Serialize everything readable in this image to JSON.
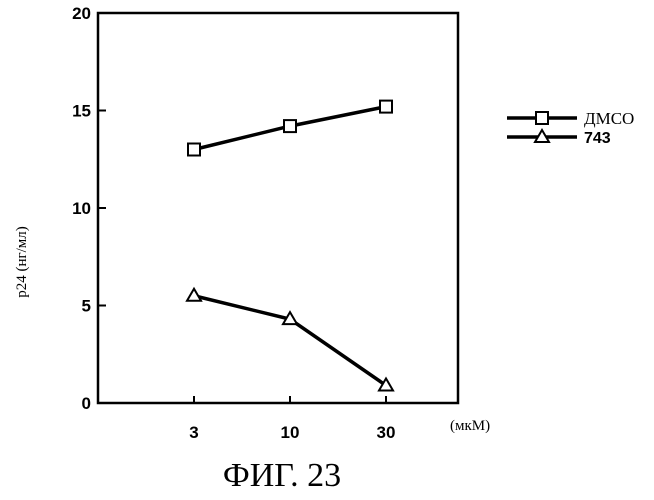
{
  "chart_data": {
    "type": "line",
    "categories": [
      "3",
      "10",
      "30"
    ],
    "series": [
      {
        "name": "ДМСО",
        "values": [
          13.0,
          14.2,
          15.2
        ],
        "marker": "square"
      },
      {
        "name": "743",
        "values": [
          5.5,
          4.3,
          0.9
        ],
        "marker": "triangle"
      }
    ],
    "ylabel": "p24 (нг/мл)",
    "xunit": "(мкМ)",
    "ylim": [
      0,
      20
    ],
    "yticks": [
      0,
      5,
      10,
      15,
      20
    ],
    "grid": false,
    "legend_position": "right",
    "line_color": "#000000"
  },
  "figure_caption": "ФИГ. 23"
}
